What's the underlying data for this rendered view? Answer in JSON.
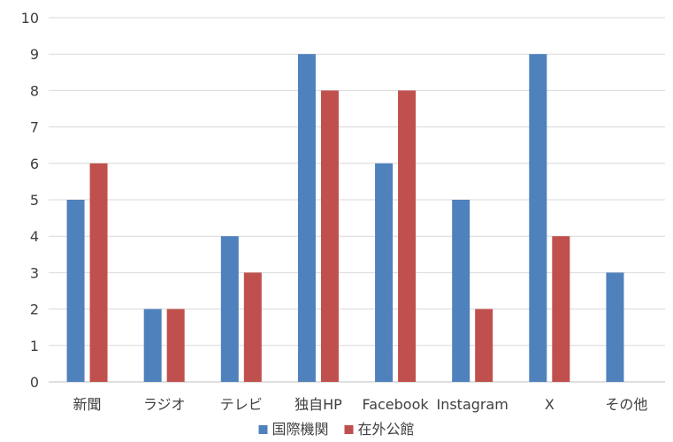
{
  "chart_data": {
    "type": "bar",
    "categories": [
      "新聞",
      "ラジオ",
      "テレビ",
      "独自HP",
      "Facebook",
      "Instagram",
      "X",
      "その他"
    ],
    "series": [
      {
        "name": "国際機関",
        "color": "#4f81bd",
        "values": [
          5,
          2,
          4,
          9,
          6,
          5,
          9,
          3
        ]
      },
      {
        "name": "在外公館",
        "color": "#c0504d",
        "values": [
          6,
          2,
          3,
          8,
          8,
          2,
          4,
          0
        ]
      }
    ],
    "ylim": [
      0,
      10
    ],
    "yticks": [
      0,
      1,
      2,
      3,
      4,
      5,
      6,
      7,
      8,
      9,
      10
    ],
    "grid": true,
    "legend_position": "bottom"
  }
}
